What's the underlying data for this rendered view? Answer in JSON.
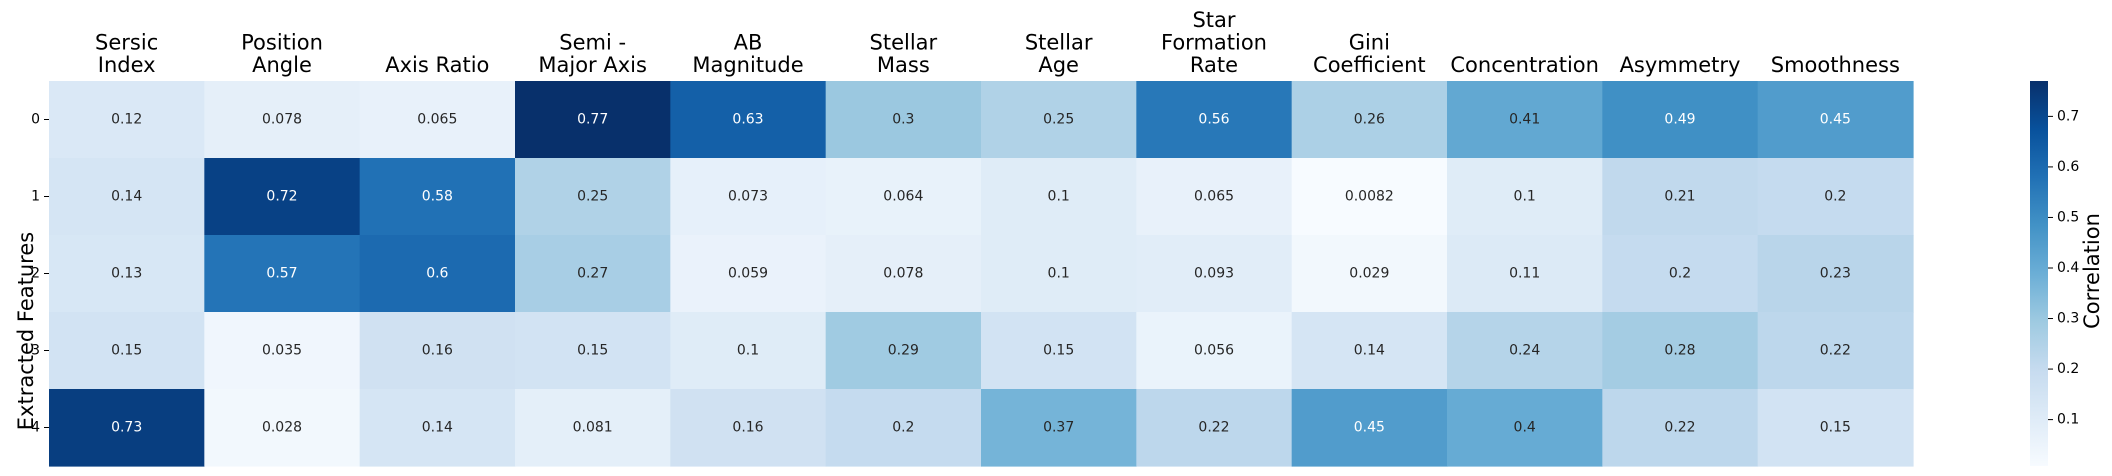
{
  "chart_data": {
    "type": "heatmap",
    "columns": [
      [
        "Sersic",
        "Index"
      ],
      [
        "Position",
        "Angle"
      ],
      [
        "Axis Ratio"
      ],
      [
        "Semi -",
        "Major Axis"
      ],
      [
        "AB",
        "Magnitude"
      ],
      [
        "Stellar",
        "Mass"
      ],
      [
        "Stellar",
        "Age"
      ],
      [
        "Star",
        "Formation",
        "Rate"
      ],
      [
        "Gini",
        "Coefficient"
      ],
      [
        "Concentration"
      ],
      [
        "Asymmetry"
      ],
      [
        "Smoothness"
      ]
    ],
    "rows": [
      "0",
      "1",
      "2",
      "3",
      "4"
    ],
    "values": [
      [
        0.12,
        0.078,
        0.065,
        0.77,
        0.63,
        0.3,
        0.25,
        0.56,
        0.26,
        0.41,
        0.49,
        0.45
      ],
      [
        0.14,
        0.72,
        0.58,
        0.25,
        0.073,
        0.064,
        0.1,
        0.065,
        0.0082,
        0.1,
        0.21,
        0.2
      ],
      [
        0.13,
        0.57,
        0.6,
        0.27,
        0.059,
        0.078,
        0.1,
        0.093,
        0.029,
        0.11,
        0.2,
        0.23
      ],
      [
        0.15,
        0.035,
        0.16,
        0.15,
        0.1,
        0.29,
        0.15,
        0.056,
        0.14,
        0.24,
        0.28,
        0.22
      ],
      [
        0.73,
        0.028,
        0.14,
        0.081,
        0.16,
        0.2,
        0.37,
        0.22,
        0.45,
        0.4,
        0.22,
        0.15
      ]
    ],
    "ylabel": "Extracted Features",
    "colorbar": {
      "label": "Correlation",
      "ticks": [
        0.1,
        0.2,
        0.3,
        0.4,
        0.5,
        0.6,
        0.7
      ],
      "range": [
        0.0082,
        0.77
      ]
    },
    "colormap": "Blues",
    "colormap_stops": [
      "#f7fbff",
      "#deebf7",
      "#c6dbef",
      "#9ecae1",
      "#6baed6",
      "#4292c6",
      "#2171b5",
      "#08519c",
      "#08306b"
    ]
  }
}
